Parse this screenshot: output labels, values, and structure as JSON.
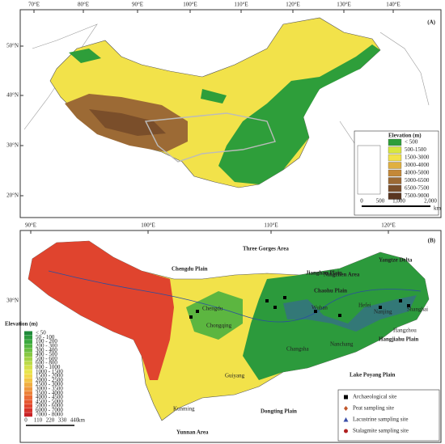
{
  "panel_a": {
    "label": "(A)",
    "lon_ticks": [
      "70°E",
      "80°E",
      "90°E",
      "100°E",
      "110°E",
      "120°E",
      "130°E",
      "140°E"
    ],
    "lat_ticks": [
      "50°N",
      "40°N",
      "30°N",
      "20°N"
    ],
    "legend": {
      "title": "Elevation (m)",
      "items": [
        {
          "label": "< 500",
          "color": "#2e9e3a"
        },
        {
          "label": "500-1500",
          "color": "#d8e640"
        },
        {
          "label": "1500-3000",
          "color": "#f2e24a"
        },
        {
          "label": "3000-4000",
          "color": "#e0b040"
        },
        {
          "label": "4000-5000",
          "color": "#c48838"
        },
        {
          "label": "5000-6500",
          "color": "#9c6a35"
        },
        {
          "label": "6500-7500",
          "color": "#7a4e2a"
        },
        {
          "label": "7500-9000",
          "color": "#5a3620"
        }
      ]
    },
    "scale": {
      "ticks": [
        "0",
        "500",
        "1,000",
        "2,000"
      ],
      "unit": "km"
    }
  },
  "panel_b": {
    "label": "(B)",
    "lon_ticks": [
      "90°E",
      "100°E",
      "110°E",
      "120°E"
    ],
    "lat_ticks": [
      "30°N"
    ],
    "regions": [
      "Chengdu Plain",
      "Three Gorges Area",
      "Jianghan Plain",
      "Chaohu Plain",
      "Ningzhen Area",
      "Yangtze Delta",
      "Hangjiahu Plain",
      "Lake Poyang Plain",
      "Dongting Plain",
      "Yunnan Area"
    ],
    "cities": [
      "Chengdu",
      "Chongqing",
      "Guiyang",
      "Kunming",
      "Wuhan",
      "Changsha",
      "Nanchang",
      "Hefei",
      "Nanjing",
      "Shanghai",
      "Hangzhou"
    ],
    "legend": {
      "title": "Elevation (m)",
      "items": [
        {
          "label": "< 50",
          "color": "#1f8a3a"
        },
        {
          "label": "50 - 100",
          "color": "#2c9a3c"
        },
        {
          "label": "100 - 200",
          "color": "#3aa83e"
        },
        {
          "label": "200 - 300",
          "color": "#52b440"
        },
        {
          "label": "300 - 400",
          "color": "#6cbf42"
        },
        {
          "label": "400 - 500",
          "color": "#88c944"
        },
        {
          "label": "500 - 600",
          "color": "#a2d246"
        },
        {
          "label": "600 - 800",
          "color": "#bcda48"
        },
        {
          "label": "800 - 1000",
          "color": "#d4e04a"
        },
        {
          "label": "1000 - 1500",
          "color": "#e8e44c"
        },
        {
          "label": "1500 - 2000",
          "color": "#f2d84a"
        },
        {
          "label": "2000 - 2500",
          "color": "#f2c446"
        },
        {
          "label": "2500 - 3000",
          "color": "#f0ae42"
        },
        {
          "label": "3000 - 3500",
          "color": "#ee983e"
        },
        {
          "label": "3500 - 4000",
          "color": "#ec823a"
        },
        {
          "label": "4000 - 4500",
          "color": "#ea6c36"
        },
        {
          "label": "4500 - 5000",
          "color": "#e65832"
        },
        {
          "label": "5000 - 6000",
          "color": "#e0442e"
        },
        {
          "label": "6000 - 7000",
          "color": "#d6322a"
        },
        {
          "label": "7000 - 8000",
          "color": "#c82226"
        }
      ]
    },
    "scale": {
      "ticks": [
        "0",
        "110",
        "220",
        "330",
        "440"
      ],
      "unit": "km"
    },
    "symbols": [
      "Archaeological site",
      "Peat sampling site",
      "Lacustrine sampling site",
      "Stalagmite sampling site"
    ]
  }
}
